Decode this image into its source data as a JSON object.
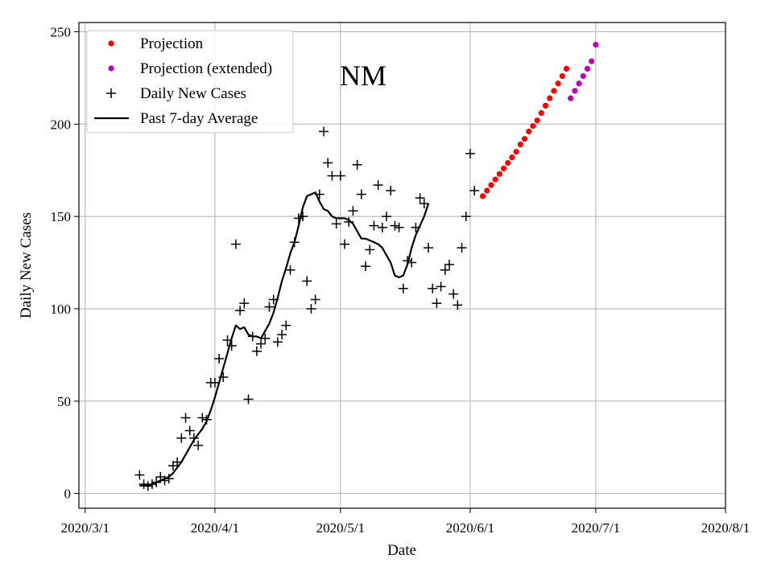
{
  "chart_data": {
    "type": "scatter",
    "title": "NM",
    "xlabel": "Date",
    "ylabel": "Daily New Cases",
    "xlim": [
      -1.5,
      153
    ],
    "ylim": [
      -8,
      255
    ],
    "x_ticks": [
      {
        "day": 0,
        "label": "2020/3/1"
      },
      {
        "day": 31,
        "label": "2020/4/1"
      },
      {
        "day": 61,
        "label": "2020/5/1"
      },
      {
        "day": 92,
        "label": "2020/6/1"
      },
      {
        "day": 122,
        "label": "2020/7/1"
      },
      {
        "day": 153,
        "label": "2020/8/1"
      }
    ],
    "y_ticks": [
      0,
      50,
      100,
      150,
      200,
      250
    ],
    "grid": true,
    "legend_position": "top-left",
    "legend": [
      {
        "label": "Projection",
        "marker": "dot",
        "color": "#ff0000"
      },
      {
        "label": "Projection (extended)",
        "marker": "dot",
        "color": "#bf00bf"
      },
      {
        "label": "Daily New Cases",
        "marker": "plus",
        "color": "#000000"
      },
      {
        "label": "Past 7-day Average",
        "marker": "line",
        "color": "#000000"
      }
    ],
    "series": [
      {
        "name": "Daily New Cases",
        "marker": "plus",
        "color": "#000000",
        "x": [
          13,
          14,
          15,
          16,
          17,
          18,
          19,
          20,
          21,
          22,
          23,
          24,
          25,
          26,
          27,
          28,
          29,
          30,
          31,
          32,
          33,
          34,
          35,
          36,
          37,
          38,
          39,
          40,
          41,
          42,
          43,
          44,
          45,
          46,
          47,
          48,
          49,
          50,
          51,
          52,
          53,
          54,
          55,
          56,
          57,
          58,
          59,
          60,
          61,
          62,
          63,
          64,
          65,
          66,
          67,
          68,
          69,
          70,
          71,
          72,
          73,
          74,
          75,
          76,
          77,
          78,
          79,
          80,
          81,
          82,
          83,
          84,
          85,
          86,
          87,
          88,
          89,
          90,
          91,
          92,
          93,
          94
        ],
        "y": [
          10,
          5,
          4,
          5,
          6,
          9,
          7,
          8,
          15,
          17,
          30,
          41,
          34,
          30,
          26,
          41,
          40,
          60,
          60,
          73,
          63,
          83,
          80,
          135,
          99,
          103,
          51,
          85,
          77,
          81,
          84,
          101,
          105,
          82,
          86,
          91,
          121,
          136,
          149,
          150,
          115,
          100,
          105,
          162,
          196,
          179,
          172,
          146,
          172,
          135,
          147,
          153,
          178,
          162,
          123,
          132,
          145,
          167,
          144,
          150,
          164,
          145,
          144,
          111,
          126,
          125,
          144,
          160,
          157,
          133,
          111,
          103,
          112,
          121,
          124,
          108,
          102,
          133,
          150,
          184,
          164,
          null
        ]
      },
      {
        "name": "Past 7-day Average",
        "marker": "line",
        "color": "#000000",
        "x": [
          13,
          14,
          15,
          16,
          17,
          18,
          19,
          20,
          21,
          22,
          23,
          24,
          25,
          26,
          27,
          28,
          29,
          30,
          31,
          32,
          33,
          34,
          35,
          36,
          37,
          38,
          39,
          40,
          41,
          42,
          43,
          44,
          45,
          46,
          47,
          48,
          49,
          50,
          51,
          52,
          53,
          54,
          55,
          56,
          57,
          58,
          59,
          60,
          61,
          62,
          63,
          64,
          65,
          66,
          67,
          68,
          69,
          70,
          71,
          72,
          73,
          74,
          75,
          76,
          77,
          78,
          79,
          80,
          81,
          82,
          83,
          84,
          85,
          86,
          87,
          88,
          89,
          90,
          91,
          92,
          93,
          94
        ],
        "y": [
          4,
          4.5,
          4.5,
          5,
          6,
          7,
          8,
          9,
          11,
          14,
          17,
          21,
          25,
          29,
          32,
          35,
          39,
          45,
          52,
          60,
          68,
          76,
          84,
          91,
          89,
          90,
          86,
          85,
          85,
          84,
          88,
          92,
          98,
          106,
          115,
          122,
          130,
          136,
          145,
          155,
          161,
          162,
          163,
          158,
          154,
          153,
          150,
          149,
          149,
          149,
          148,
          146,
          142,
          138,
          138,
          137,
          136,
          135,
          133,
          129,
          125,
          118,
          117,
          118,
          124,
          133,
          140,
          145,
          150,
          157,
          null,
          null,
          null,
          null,
          null,
          null,
          null,
          null,
          null,
          null,
          null,
          null
        ]
      },
      {
        "name": "Projection",
        "marker": "dot",
        "color": "#ff0000",
        "x": [
          95,
          96,
          97,
          98,
          99,
          100,
          101,
          102,
          103,
          104,
          105,
          106,
          107,
          108,
          109,
          110,
          111,
          112,
          113,
          114,
          115
        ],
        "y": [
          161,
          164,
          167,
          170,
          173,
          176,
          179,
          182,
          185,
          189,
          192,
          196,
          199,
          202,
          206,
          210,
          214,
          218,
          222,
          226,
          230
        ]
      },
      {
        "name": "Projection (extended)",
        "marker": "dot",
        "color": "#bf00bf",
        "x": [
          116,
          117,
          118,
          119,
          120,
          121,
          122
        ],
        "y": [
          214,
          218,
          222,
          226,
          230,
          234,
          243
        ]
      }
    ]
  }
}
